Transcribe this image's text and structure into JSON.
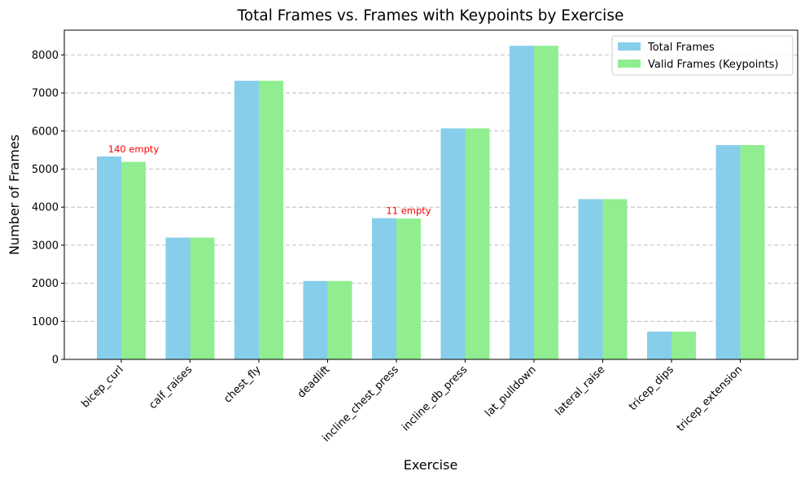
{
  "chart_data": {
    "type": "bar",
    "title": "Total Frames vs. Frames with Keypoints by Exercise",
    "xlabel": "Exercise",
    "ylabel": "Number of Frames",
    "categories": [
      "bicep_curl",
      "calf_raises",
      "chest_fly",
      "deadlift",
      "incline_chest_press",
      "incline_db_press",
      "lat_pulldown",
      "lateral_raise",
      "tricep_dips",
      "tricep_extension"
    ],
    "series": [
      {
        "name": "Total Frames",
        "color": "#87ceeb",
        "values": [
          5330,
          3200,
          7320,
          2060,
          3710,
          6070,
          8240,
          4210,
          730,
          5630
        ]
      },
      {
        "name": "Valid Frames (Keypoints)",
        "color": "#90ee90",
        "values": [
          5190,
          3200,
          7320,
          2060,
          3699,
          6070,
          8240,
          4210,
          730,
          5630
        ]
      }
    ],
    "ylim": [
      0,
      8650
    ],
    "yticks": [
      0,
      1000,
      2000,
      3000,
      4000,
      5000,
      6000,
      7000,
      8000
    ],
    "grid": "y-dashed",
    "legend_position": "top-right",
    "annotations": [
      {
        "category": "bicep_curl",
        "text": "140 empty",
        "color": "#ff0000"
      },
      {
        "category": "incline_chest_press",
        "text": "11 empty",
        "color": "#ff0000"
      }
    ]
  }
}
